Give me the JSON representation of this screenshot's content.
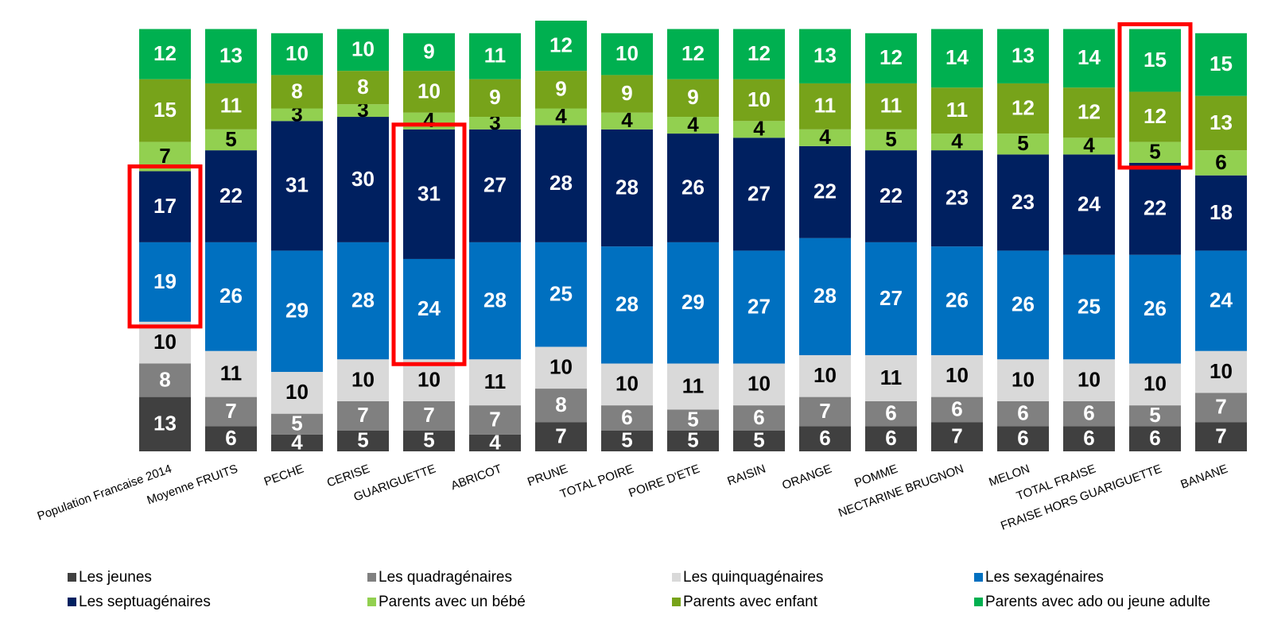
{
  "chart_data": {
    "type": "stacked_bar",
    "categories": [
      "Population Francaise 2014",
      "Moyenne FRUITS",
      "PECHE",
      "CERISE",
      "GUARIGUETTE",
      "ABRICOT",
      "PRUNE",
      "TOTAL POIRE",
      "POIRE D'ETE",
      "RAISIN",
      "ORANGE",
      "POMME",
      "NECTARINE BRUGNON",
      "MELON",
      "TOTAL FRAISE",
      "FRAISE HORS GUARIGUETTE",
      "BANANE"
    ],
    "series": [
      {
        "name": "Les jeunes",
        "color": "#404040",
        "values": [
          13,
          6,
          4,
          5,
          5,
          4,
          7,
          5,
          5,
          5,
          6,
          6,
          7,
          6,
          6,
          6,
          7
        ]
      },
      {
        "name": "Les quadragénaires",
        "color": "#808080",
        "values": [
          8,
          7,
          5,
          7,
          7,
          7,
          8,
          6,
          5,
          6,
          7,
          6,
          6,
          6,
          6,
          5,
          7
        ]
      },
      {
        "name": "Les quinquagénaires",
        "color": "#d9d9d9",
        "values": [
          10,
          11,
          10,
          10,
          10,
          11,
          10,
          10,
          11,
          10,
          10,
          11,
          10,
          10,
          10,
          10,
          10
        ]
      },
      {
        "name": "Les sexagénaires",
        "color": "#0070c0",
        "values": [
          19,
          26,
          29,
          28,
          24,
          28,
          25,
          28,
          29,
          27,
          28,
          27,
          26,
          26,
          25,
          26,
          24
        ]
      },
      {
        "name": "Les septuagénaires",
        "color": "#002060",
        "values": [
          17,
          22,
          31,
          30,
          31,
          27,
          28,
          28,
          26,
          27,
          22,
          22,
          23,
          23,
          24,
          22,
          18
        ]
      },
      {
        "name": "Parents avec un bébé",
        "color": "#92d050",
        "values": [
          7,
          5,
          3,
          3,
          4,
          3,
          4,
          4,
          4,
          4,
          4,
          5,
          4,
          5,
          4,
          5,
          6
        ]
      },
      {
        "name": "Parents avec enfant",
        "color": "#77a31a",
        "values": [
          15,
          11,
          8,
          8,
          10,
          9,
          9,
          9,
          9,
          10,
          11,
          11,
          11,
          12,
          12,
          12,
          13
        ]
      },
      {
        "name": "Parents avec ado ou jeune adulte",
        "color": "#00b050",
        "values": [
          12,
          13,
          10,
          10,
          9,
          11,
          12,
          10,
          12,
          12,
          13,
          12,
          14,
          13,
          14,
          15,
          15
        ]
      }
    ]
  }
}
